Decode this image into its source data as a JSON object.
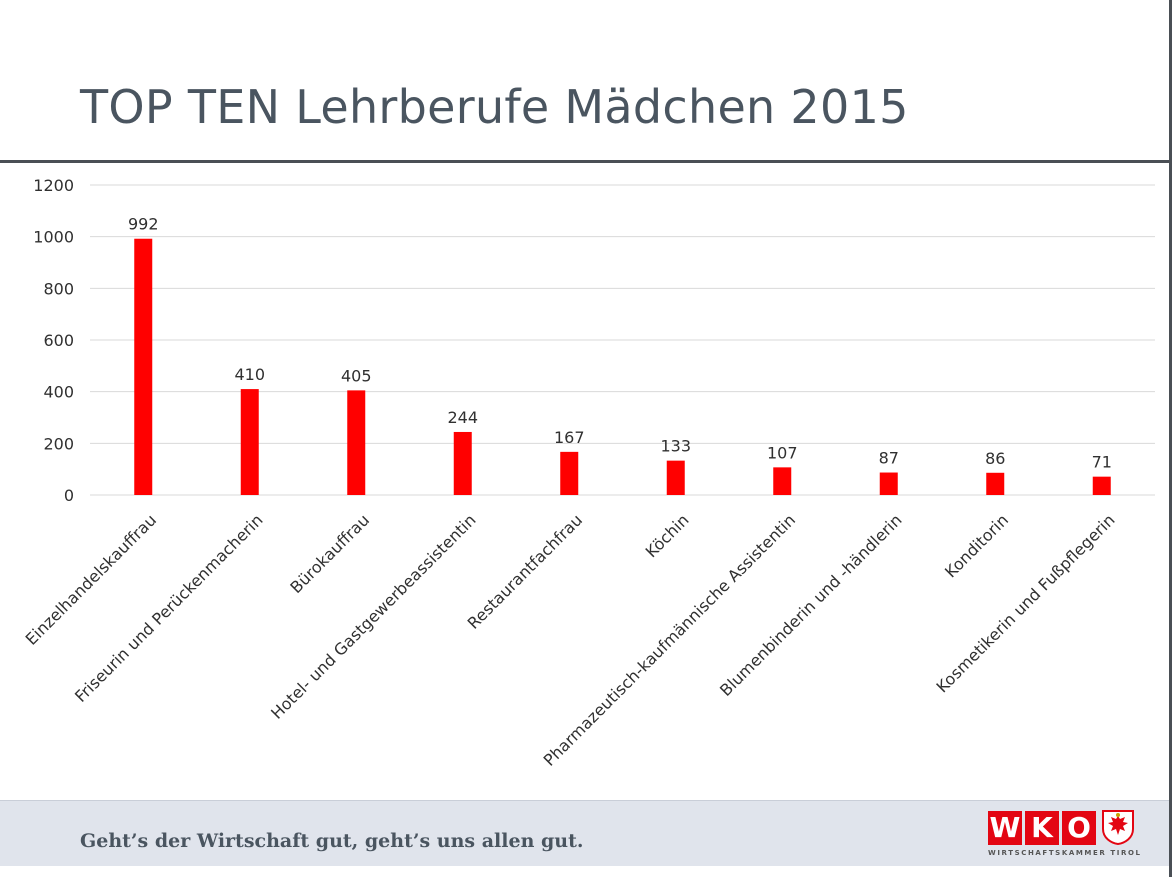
{
  "slide": {
    "title": "TOP TEN Lehrberufe Mädchen 2015",
    "footer_tagline": "Geht’s der Wirtschaft gut, geht’s uns allen gut."
  },
  "logo": {
    "letters": [
      "W",
      "K",
      "O"
    ],
    "subtitle": "WIRTSCHAFTSKAMMER TIROL",
    "icon": "tyrolean-eagle-crest-icon"
  },
  "colors": {
    "bar": "#ff0000",
    "title": "#4a5560",
    "brand": "#e30613",
    "footer_bg": "#e0e4ec"
  },
  "chart_data": {
    "type": "bar",
    "title": "TOP TEN Lehrberufe Mädchen 2015",
    "xlabel": "",
    "ylabel": "",
    "categories": [
      "Einzelhandelskauffrau",
      "Friseurin und Perückenmacherin",
      "Bürokauffrau",
      "Hotel- und Gastgewerbeassistentin",
      "Restaurantfachfrau",
      "Köchin",
      "Pharmazeutisch-kaufmännische Assistentin",
      "Blumenbinderin und -händlerin",
      "Konditorin",
      "Kosmetikerin und Fußpflegerin"
    ],
    "values": [
      992,
      410,
      405,
      244,
      167,
      133,
      107,
      87,
      86,
      71
    ],
    "ylim": [
      0,
      1200
    ],
    "yticks": [
      0,
      200,
      400,
      600,
      800,
      1000,
      1200
    ],
    "grid": true,
    "data_labels": true
  }
}
